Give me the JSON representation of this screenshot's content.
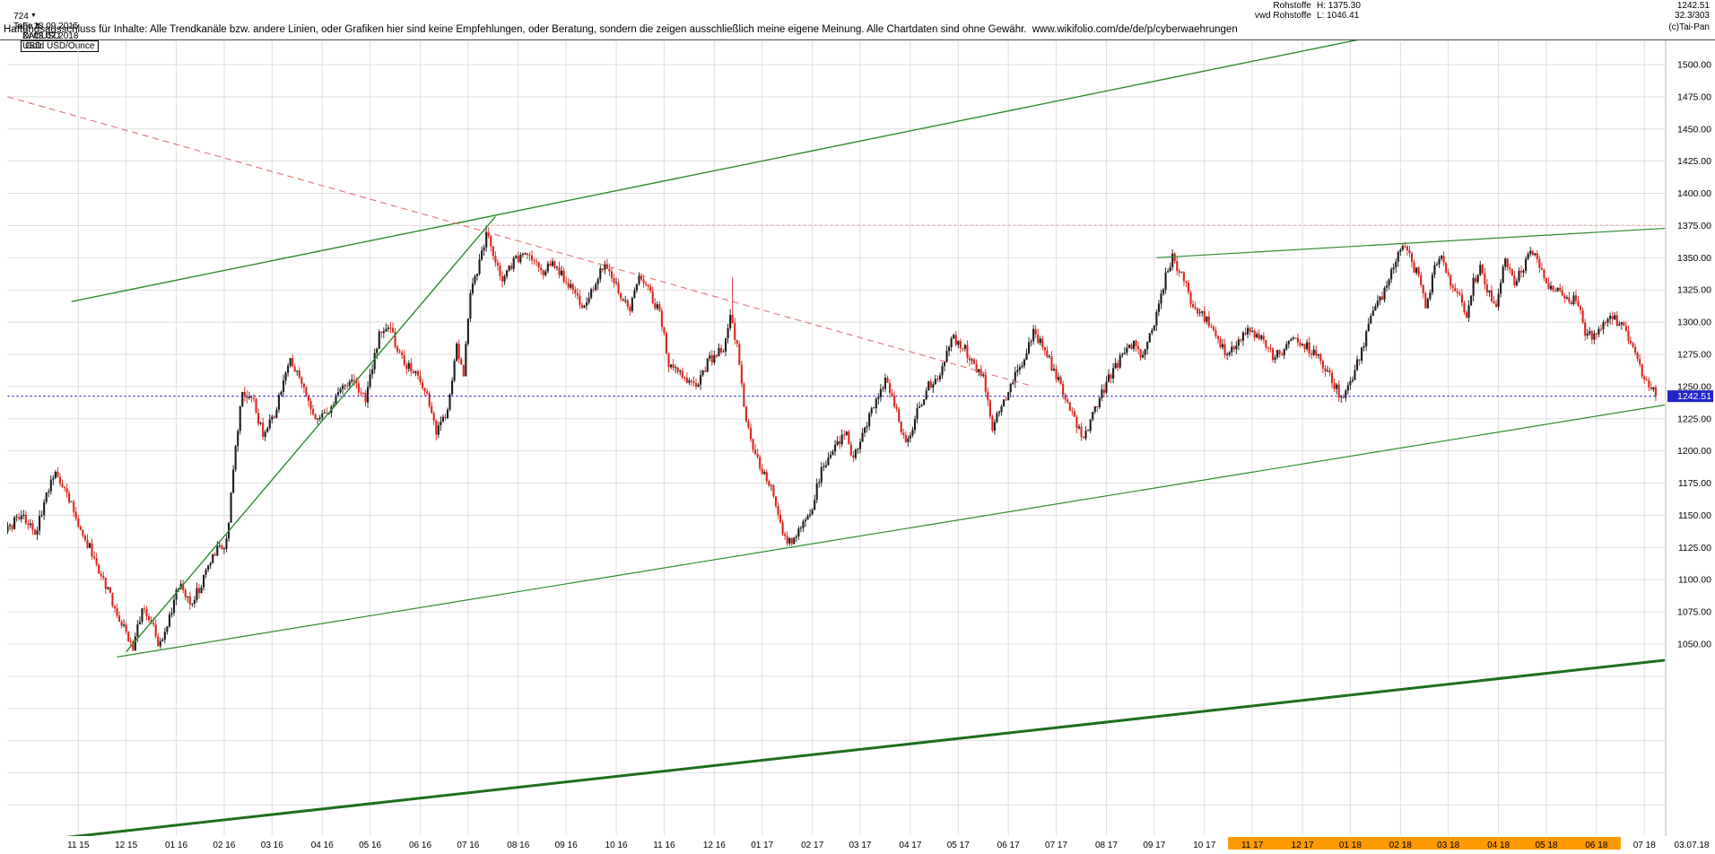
{
  "header": {
    "left": {
      "bars_count": "724",
      "date_from": "Fr 18.09.2015",
      "symbol": "XAUUSD",
      "instrument": "Gold USD/Ounce",
      "period": "Tage",
      "date_to": "Di 03.07.2018",
      "currency": "USD"
    },
    "right": {
      "feed": "Rohstoffe",
      "high_label": "H: 1375.30",
      "last_price": "1242.51",
      "feed2": "vwd Rohstoffe",
      "low_label": "L: 1046.41",
      "indicator_value": "32.3/303",
      "copyright": "(c)Tai-Pan"
    }
  },
  "disclaimer": "Haftungsausschluss für Inhalte: Alle Trendkanäle bzw. andere Linien, oder Grafiken hier sind keine Empfehlungen, oder Beratung, sondern die zeigen ausschließlich meine eigene Meinung. Alle Chartdaten sind ohne Gewähr.  www.wikifolio.com/de/de/p/cyberwaehrungen",
  "axis": {
    "last_price_label": "1242.51",
    "final_date_label": "03.07.18",
    "price_labels": [
      {
        "value": 1500,
        "text": "1500.00"
      },
      {
        "value": 1475,
        "text": "1475.00"
      },
      {
        "value": 1450,
        "text": "1450.00"
      },
      {
        "value": 1425,
        "text": "1425.00"
      },
      {
        "value": 1400,
        "text": "1400.00"
      },
      {
        "value": 1375,
        "text": "1375.00"
      },
      {
        "value": 1350,
        "text": "1350.00"
      },
      {
        "value": 1325,
        "text": "1325.00"
      },
      {
        "value": 1300,
        "text": "1300.00"
      },
      {
        "value": 1275,
        "text": "1275.00"
      },
      {
        "value": 1250,
        "text": "1250.00"
      },
      {
        "value": 1225,
        "text": "1225.00"
      },
      {
        "value": 1200,
        "text": "1200.00"
      },
      {
        "value": 1175,
        "text": "1175.00"
      },
      {
        "value": 1150,
        "text": "1150.00"
      },
      {
        "value": 1125,
        "text": "1125.00"
      },
      {
        "value": 1100,
        "text": "1100.00"
      },
      {
        "value": 1075,
        "text": "1075.00"
      },
      {
        "value": 1050,
        "text": "1050.00"
      }
    ],
    "months": [
      {
        "label": "11 15",
        "bar": 31,
        "hl": false
      },
      {
        "label": "12 15",
        "bar": 52,
        "hl": false
      },
      {
        "label": "01 16",
        "bar": 74,
        "hl": false
      },
      {
        "label": "02 16",
        "bar": 95,
        "hl": false
      },
      {
        "label": "03 16",
        "bar": 116,
        "hl": false
      },
      {
        "label": "04 16",
        "bar": 138,
        "hl": false
      },
      {
        "label": "05 16",
        "bar": 159,
        "hl": false
      },
      {
        "label": "06 16",
        "bar": 181,
        "hl": false
      },
      {
        "label": "07 16",
        "bar": 202,
        "hl": false
      },
      {
        "label": "08 16",
        "bar": 224,
        "hl": false
      },
      {
        "label": "09 16",
        "bar": 245,
        "hl": false
      },
      {
        "label": "10 16",
        "bar": 267,
        "hl": false
      },
      {
        "label": "11 16",
        "bar": 288,
        "hl": false
      },
      {
        "label": "12 16",
        "bar": 310,
        "hl": false
      },
      {
        "label": "01 17",
        "bar": 331,
        "hl": false
      },
      {
        "label": "02 17",
        "bar": 353,
        "hl": false
      },
      {
        "label": "03 17",
        "bar": 374,
        "hl": false
      },
      {
        "label": "04 17",
        "bar": 396,
        "hl": false
      },
      {
        "label": "05 17",
        "bar": 417,
        "hl": false
      },
      {
        "label": "06 17",
        "bar": 439,
        "hl": false
      },
      {
        "label": "07 17",
        "bar": 460,
        "hl": false
      },
      {
        "label": "08 17",
        "bar": 482,
        "hl": false
      },
      {
        "label": "09 17",
        "bar": 503,
        "hl": false
      },
      {
        "label": "10 17",
        "bar": 525,
        "hl": false
      },
      {
        "label": "11 17",
        "bar": 546,
        "hl": true
      },
      {
        "label": "12 17",
        "bar": 568,
        "hl": true
      },
      {
        "label": "01 18",
        "bar": 589,
        "hl": true
      },
      {
        "label": "02 18",
        "bar": 611,
        "hl": true
      },
      {
        "label": "03 18",
        "bar": 632,
        "hl": true
      },
      {
        "label": "04 18",
        "bar": 654,
        "hl": true
      },
      {
        "label": "05 18",
        "bar": 675,
        "hl": true
      },
      {
        "label": "06 18",
        "bar": 697,
        "hl": true
      },
      {
        "label": "07 18",
        "bar": 718,
        "hl": false
      }
    ]
  },
  "colors": {
    "up": "#1b1b1b",
    "down": "#d9251d",
    "grid": "#dedede",
    "highlight_band": "#ff9900",
    "last_price_bg": "#2125c8",
    "green_line": "#2e8b2e",
    "dark_green_line": "#1d6f1d",
    "red_dash": "#e87070",
    "pink_dot": "#f2a6a6",
    "blue_dot": "#2323cf"
  },
  "chart_data": {
    "type": "candlestick",
    "title": "Gold USD/Ounce (XAUUSD), Tage",
    "x_range": [
      "18.09.2015",
      "03.07.2018"
    ],
    "y_range": [
      1046.41,
      1375.3
    ],
    "y_axis": {
      "min_label": 1050,
      "max_label": 1500,
      "step": 25
    },
    "bars_total": 724,
    "last_close": 1242.51,
    "period_high": 1375.3,
    "period_low": 1046.41,
    "anchors": [
      [
        0,
        1139
      ],
      [
        6,
        1151
      ],
      [
        12,
        1135
      ],
      [
        18,
        1170
      ],
      [
        21,
        1184
      ],
      [
        27,
        1163
      ],
      [
        31,
        1141
      ],
      [
        38,
        1118
      ],
      [
        45,
        1086
      ],
      [
        52,
        1058
      ],
      [
        55,
        1048
      ],
      [
        59,
        1076
      ],
      [
        63,
        1068
      ],
      [
        66,
        1051
      ],
      [
        70,
        1062
      ],
      [
        75,
        1096
      ],
      [
        80,
        1083
      ],
      [
        85,
        1095
      ],
      [
        90,
        1121
      ],
      [
        96,
        1129
      ],
      [
        100,
        1200
      ],
      [
        103,
        1247
      ],
      [
        108,
        1239
      ],
      [
        112,
        1211
      ],
      [
        118,
        1233
      ],
      [
        124,
        1272
      ],
      [
        130,
        1246
      ],
      [
        135,
        1221
      ],
      [
        142,
        1235
      ],
      [
        150,
        1256
      ],
      [
        157,
        1239
      ],
      [
        163,
        1289
      ],
      [
        168,
        1296
      ],
      [
        172,
        1273
      ],
      [
        178,
        1262
      ],
      [
        183,
        1249
      ],
      [
        188,
        1216
      ],
      [
        193,
        1229
      ],
      [
        197,
        1281
      ],
      [
        200,
        1261
      ],
      [
        203,
        1320
      ],
      [
        206,
        1341
      ],
      [
        210,
        1369
      ],
      [
        213,
        1353
      ],
      [
        217,
        1333
      ],
      [
        222,
        1347
      ],
      [
        228,
        1356
      ],
      [
        234,
        1339
      ],
      [
        240,
        1345
      ],
      [
        246,
        1330
      ],
      [
        252,
        1314
      ],
      [
        257,
        1327
      ],
      [
        262,
        1346
      ],
      [
        268,
        1323
      ],
      [
        273,
        1311
      ],
      [
        277,
        1336
      ],
      [
        281,
        1327
      ],
      [
        286,
        1306
      ],
      [
        290,
        1269
      ],
      [
        296,
        1259
      ],
      [
        302,
        1251
      ],
      [
        308,
        1271
      ],
      [
        314,
        1279
      ],
      [
        317,
        1303
      ],
      [
        320,
        1281
      ],
      [
        324,
        1221
      ],
      [
        330,
        1186
      ],
      [
        335,
        1173
      ],
      [
        340,
        1134
      ],
      [
        343,
        1129
      ],
      [
        348,
        1139
      ],
      [
        352,
        1151
      ],
      [
        357,
        1186
      ],
      [
        362,
        1203
      ],
      [
        368,
        1213
      ],
      [
        371,
        1193
      ],
      [
        376,
        1219
      ],
      [
        381,
        1238
      ],
      [
        385,
        1254
      ],
      [
        390,
        1231
      ],
      [
        394,
        1203
      ],
      [
        399,
        1231
      ],
      [
        404,
        1251
      ],
      [
        409,
        1256
      ],
      [
        414,
        1288
      ],
      [
        419,
        1281
      ],
      [
        424,
        1267
      ],
      [
        428,
        1256
      ],
      [
        432,
        1219
      ],
      [
        436,
        1233
      ],
      [
        441,
        1256
      ],
      [
        445,
        1263
      ],
      [
        450,
        1294
      ],
      [
        455,
        1277
      ],
      [
        460,
        1259
      ],
      [
        464,
        1243
      ],
      [
        468,
        1223
      ],
      [
        472,
        1208
      ],
      [
        477,
        1231
      ],
      [
        481,
        1249
      ],
      [
        485,
        1263
      ],
      [
        490,
        1276
      ],
      [
        494,
        1283
      ],
      [
        498,
        1273
      ],
      [
        503,
        1301
      ],
      [
        508,
        1335
      ],
      [
        511,
        1351
      ],
      [
        515,
        1336
      ],
      [
        520,
        1313
      ],
      [
        525,
        1304
      ],
      [
        530,
        1291
      ],
      [
        535,
        1273
      ],
      [
        540,
        1283
      ],
      [
        545,
        1296
      ],
      [
        550,
        1286
      ],
      [
        555,
        1273
      ],
      [
        560,
        1279
      ],
      [
        565,
        1289
      ],
      [
        570,
        1281
      ],
      [
        575,
        1273
      ],
      [
        580,
        1259
      ],
      [
        585,
        1241
      ],
      [
        590,
        1256
      ],
      [
        594,
        1279
      ],
      [
        598,
        1303
      ],
      [
        603,
        1321
      ],
      [
        607,
        1341
      ],
      [
        612,
        1363
      ],
      [
        616,
        1346
      ],
      [
        620,
        1331
      ],
      [
        622,
        1311
      ],
      [
        626,
        1341
      ],
      [
        629,
        1353
      ],
      [
        633,
        1331
      ],
      [
        637,
        1319
      ],
      [
        640,
        1306
      ],
      [
        643,
        1331
      ],
      [
        646,
        1341
      ],
      [
        650,
        1321
      ],
      [
        653,
        1311
      ],
      [
        657,
        1349
      ],
      [
        661,
        1331
      ],
      [
        665,
        1341
      ],
      [
        668,
        1358
      ],
      [
        672,
        1341
      ],
      [
        676,
        1329
      ],
      [
        680,
        1323
      ],
      [
        684,
        1316
      ],
      [
        688,
        1319
      ],
      [
        692,
        1293
      ],
      [
        696,
        1289
      ],
      [
        700,
        1299
      ],
      [
        704,
        1303
      ],
      [
        708,
        1299
      ],
      [
        712,
        1283
      ],
      [
        715,
        1269
      ],
      [
        718,
        1255
      ],
      [
        721,
        1249
      ],
      [
        723,
        1242.51
      ]
    ],
    "overlays": [
      {
        "name": "trendline-resistance-long-green",
        "color": "#2e8b2e",
        "width": 1.4,
        "dash": null,
        "b1": 28,
        "p1": 1316,
        "b2": 600,
        "p2": 1522
      },
      {
        "name": "trendline-steep-2016-green",
        "color": "#2e8b2e",
        "width": 1.4,
        "dash": null,
        "b1": 52,
        "p1": 1044,
        "b2": 214,
        "p2": 1382
      },
      {
        "name": "trendline-support-long-green",
        "color": "#2e8b2e",
        "width": 1.2,
        "dash": null,
        "b1": 48,
        "p1": 1040,
        "b2": 742,
        "p2": 1240
      },
      {
        "name": "trendline-support-thick-darkgreen",
        "color": "#1d6f1d",
        "width": 3,
        "dash": null,
        "b1": 16,
        "p1": 898,
        "b2": 750,
        "p2": 1042
      },
      {
        "name": "trendline-resistance-2018-green",
        "color": "#2e8b2e",
        "width": 1.2,
        "dash": null,
        "b1": 504,
        "p1": 1350,
        "b2": 748,
        "p2": 1375
      },
      {
        "name": "trendline-downtrend-red-dashed",
        "color": "#e87070",
        "width": 1.1,
        "dash": "7 5",
        "b1": 0,
        "p1": 1475,
        "b2": 450,
        "p2": 1250
      },
      {
        "name": "period-high-pink-dotted",
        "color": "#f2a6a6",
        "width": 1.2,
        "dash": "2 4",
        "b1": 210,
        "p1": 1375.3,
        "b2": 748,
        "p2": 1375.3
      },
      {
        "name": "last-price-blue-dotted",
        "color": "#2323cf",
        "width": 1.2,
        "dash": "2 3",
        "b1": 0,
        "p1": 1242.51,
        "b2": 724,
        "p2": 1242.51
      }
    ]
  }
}
